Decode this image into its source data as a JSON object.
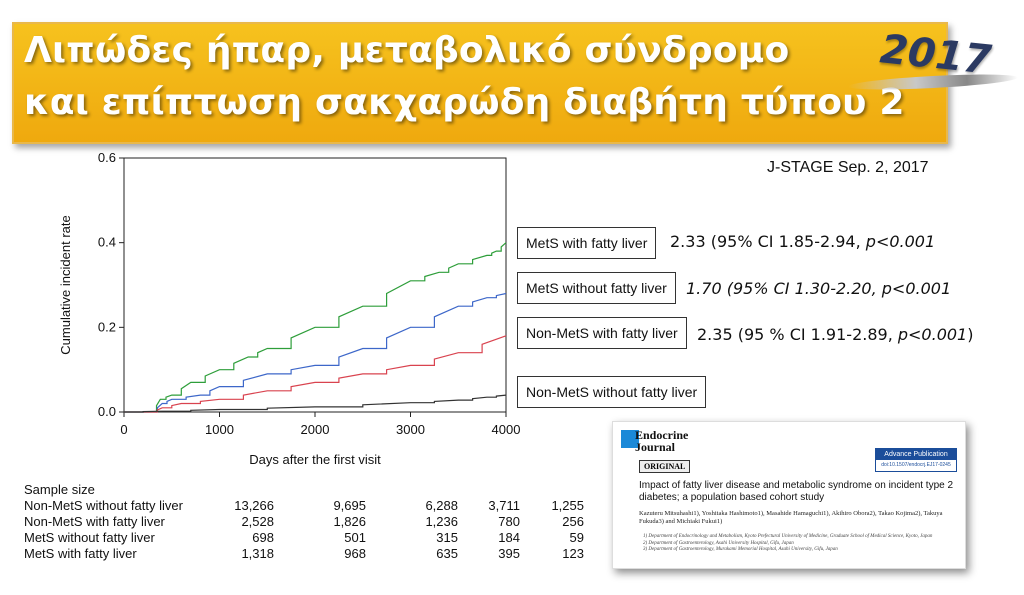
{
  "title": {
    "line1": "Λιπώδες ήπαρ, μεταβολικό σύνδρομο",
    "line2": "και επίπτωση σακχαρώδη διαβήτη τύπου 2"
  },
  "year": "2017",
  "source": "J-STAGE Sep. 2, 2017",
  "colors": {
    "title_bg": "#f2b519",
    "year": "#2b3a62",
    "green": "#2e9e3a",
    "blue": "#3d67c9",
    "red": "#d9434f",
    "black": "#333333"
  },
  "chart_data": {
    "type": "line",
    "xlabel": "Days after the first visit",
    "ylabel": "Cumulative incident rate",
    "xlim": [
      0,
      4000
    ],
    "ylim": [
      0,
      0.6
    ],
    "xticks": [
      "0",
      "1000",
      "2000",
      "3000",
      "4000"
    ],
    "yticks": [
      "0.0",
      "0.2",
      "0.4",
      "0.6"
    ],
    "series": [
      {
        "name": "MetS with fatty liver",
        "color": "#2e9e3a",
        "x": [
          0,
          300,
          380,
          500,
          700,
          1000,
          1300,
          1500,
          2000,
          2500,
          3000,
          3300,
          3500,
          3800,
          3900,
          4000
        ],
        "y": [
          0,
          0,
          0.03,
          0.04,
          0.07,
          0.1,
          0.13,
          0.15,
          0.2,
          0.25,
          0.31,
          0.33,
          0.35,
          0.37,
          0.38,
          0.4
        ]
      },
      {
        "name": "MetS without fatty liver",
        "color": "#3d67c9",
        "x": [
          0,
          300,
          400,
          500,
          800,
          1000,
          1500,
          2000,
          2500,
          3000,
          3500,
          3800,
          4000
        ],
        "y": [
          0,
          0,
          0.02,
          0.03,
          0.04,
          0.06,
          0.09,
          0.11,
          0.15,
          0.2,
          0.25,
          0.27,
          0.28
        ]
      },
      {
        "name": "Non-MetS with fatty liver",
        "color": "#d9434f",
        "x": [
          0,
          300,
          400,
          600,
          1000,
          1500,
          2000,
          2500,
          3000,
          3500,
          4000
        ],
        "y": [
          0,
          0,
          0.01,
          0.02,
          0.03,
          0.05,
          0.07,
          0.09,
          0.11,
          0.14,
          0.18
        ]
      },
      {
        "name": "Non-MetS without fatty liver",
        "color": "#333333",
        "x": [
          0,
          400,
          1000,
          2000,
          3000,
          3500,
          3800,
          4000
        ],
        "y": [
          0,
          0.002,
          0.006,
          0.012,
          0.022,
          0.028,
          0.035,
          0.04
        ]
      }
    ]
  },
  "legend": [
    {
      "label": "MetS with fatty liver",
      "stat_main": "2.33 (95% CI 1.85-2.94, ",
      "stat_p": "p<0.001",
      "stat_end": ""
    },
    {
      "label": "MetS without fatty liver",
      "stat_main": "1.70 (95% CI 1.30-2.20, p<0.001",
      "stat_p": "",
      "stat_end": ""
    },
    {
      "label": "Non-MetS with fatty liver",
      "stat_main": "2.35 (95 % CI 1.91-2.89, ",
      "stat_p": "p<0.001",
      "stat_end": ")"
    },
    {
      "label": "Non-MetS without fatty liver",
      "stat_main": "",
      "stat_p": "",
      "stat_end": ""
    }
  ],
  "sample_size": {
    "heading": "Sample size",
    "rows": [
      {
        "label": "Non-MetS without fatty liver",
        "values": [
          "13,266",
          "9,695",
          "6,288",
          "3,711",
          "1,255"
        ]
      },
      {
        "label": "Non-MetS with fatty liver",
        "values": [
          "2,528",
          "1,826",
          "1,236",
          "780",
          "256"
        ]
      },
      {
        "label": "MetS without fatty liver",
        "values": [
          "698",
          "501",
          "315",
          "184",
          "59"
        ]
      },
      {
        "label": "MetS with fatty liver",
        "values": [
          "1,318",
          "968",
          "635",
          "395",
          "123"
        ]
      }
    ]
  },
  "paper": {
    "journal_line1": "Endocrine",
    "journal_line2": "Journal",
    "advance_title": "Advance Publication",
    "advance_doi": "doi:10.1507/endocrj.EJ17-0245",
    "category": "ORIGINAL",
    "title": "Impact of fatty liver disease and metabolic syndrome on incident type 2 diabetes; a population based cohort study",
    "authors": "Kazuteru Mitsuhashi1), Yoshitaka Hashimoto1), Masahide Hamaguchi1), Akihiro Obora2), Takao Kojima2), Takuya Fukuda3) and Michiaki Fukui1)",
    "affil1": "1) Department of Endocrinology and Metabolism, Kyoto Prefectural University of Medicine, Graduate School of Medical Science, Kyoto, Japan",
    "affil2": "2) Department of Gastroenterology, Asahi University Hospital, Gifu, Japan",
    "affil3": "3) Department of Gastroenterology, Murakami Memorial Hospital, Asahi University, Gifu, Japan"
  }
}
